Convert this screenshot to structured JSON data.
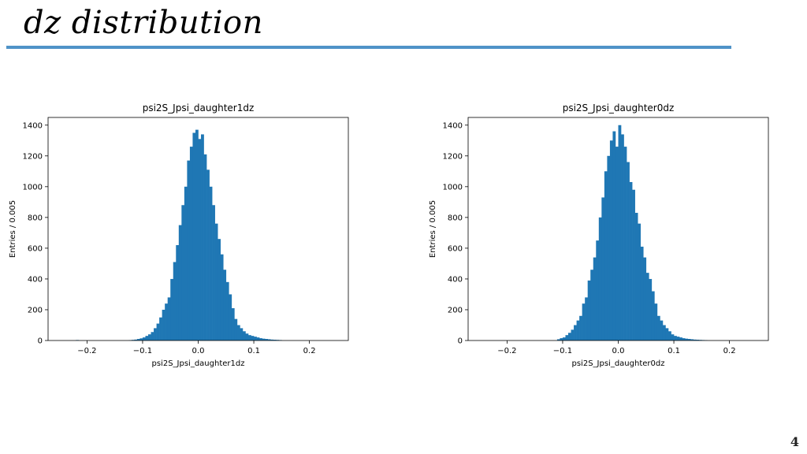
{
  "slide": {
    "title": "dz distribution",
    "page_number": "4"
  },
  "chart_data": [
    {
      "type": "bar",
      "title": "psi2S_Jpsi_daughter1dz",
      "xlabel": "psi2S_Jpsi_daughter1dz",
      "ylabel": "Entries / 0.005",
      "xlim": [
        -0.27,
        0.27
      ],
      "ylim": [
        0,
        1450
      ],
      "xticks": [
        "−0.2",
        "−0.1",
        "0.0",
        "0.1",
        "0.2"
      ],
      "xtick_values": [
        -0.2,
        -0.1,
        0.0,
        0.1,
        0.2
      ],
      "yticks": [
        "0",
        "200",
        "400",
        "600",
        "800",
        "1000",
        "1200",
        "1400"
      ],
      "ytick_values": [
        0,
        200,
        400,
        600,
        800,
        1000,
        1200,
        1400
      ],
      "bin_width": 0.005,
      "bin_centers": [
        -0.2175,
        -0.1225,
        -0.1175,
        -0.1125,
        -0.1075,
        -0.1025,
        -0.0975,
        -0.0925,
        -0.0875,
        -0.0825,
        -0.0775,
        -0.0725,
        -0.0675,
        -0.0625,
        -0.0575,
        -0.0525,
        -0.0475,
        -0.0425,
        -0.0375,
        -0.0325,
        -0.0275,
        -0.0225,
        -0.0175,
        -0.0125,
        -0.0075,
        -0.0025,
        0.0025,
        0.0075,
        0.0125,
        0.0175,
        0.0225,
        0.0275,
        0.0325,
        0.0375,
        0.0425,
        0.0475,
        0.0525,
        0.0575,
        0.0625,
        0.0675,
        0.0725,
        0.0775,
        0.0825,
        0.0875,
        0.0925,
        0.0975,
        0.1025,
        0.1075,
        0.1125,
        0.1175,
        0.1225,
        0.1275,
        0.1325,
        0.1375,
        0.1425,
        0.1475
      ],
      "values": [
        3,
        2,
        4,
        6,
        10,
        14,
        20,
        30,
        40,
        55,
        80,
        110,
        150,
        200,
        240,
        280,
        400,
        510,
        620,
        750,
        880,
        1000,
        1170,
        1260,
        1350,
        1370,
        1310,
        1340,
        1210,
        1110,
        1000,
        880,
        760,
        660,
        560,
        460,
        380,
        300,
        210,
        140,
        100,
        80,
        60,
        45,
        35,
        30,
        25,
        20,
        15,
        12,
        10,
        8,
        6,
        5,
        4,
        3
      ]
    },
    {
      "type": "bar",
      "title": "psi2S_Jpsi_daughter0dz",
      "xlabel": "psi2S_Jpsi_daughter0dz",
      "ylabel": "Entries / 0.005",
      "xlim": [
        -0.27,
        0.27
      ],
      "ylim": [
        0,
        1450
      ],
      "xticks": [
        "−0.2",
        "−0.1",
        "0.0",
        "0.1",
        "0.2"
      ],
      "xtick_values": [
        -0.2,
        -0.1,
        0.0,
        0.1,
        0.2
      ],
      "yticks": [
        "0",
        "200",
        "400",
        "600",
        "800",
        "1000",
        "1200",
        "1400"
      ],
      "ytick_values": [
        0,
        200,
        400,
        600,
        800,
        1000,
        1200,
        1400
      ],
      "bin_width": 0.005,
      "bin_centers": [
        -0.1075,
        -0.1025,
        -0.0975,
        -0.0925,
        -0.0875,
        -0.0825,
        -0.0775,
        -0.0725,
        -0.0675,
        -0.0625,
        -0.0575,
        -0.0525,
        -0.0475,
        -0.0425,
        -0.0375,
        -0.0325,
        -0.0275,
        -0.0225,
        -0.0175,
        -0.0125,
        -0.0075,
        -0.0025,
        0.0025,
        0.0075,
        0.0125,
        0.0175,
        0.0225,
        0.0275,
        0.0325,
        0.0375,
        0.0425,
        0.0475,
        0.0525,
        0.0575,
        0.0625,
        0.0675,
        0.0725,
        0.0775,
        0.0825,
        0.0875,
        0.0925,
        0.0975,
        0.1025,
        0.1075,
        0.1125,
        0.1175,
        0.1225,
        0.1275,
        0.1325,
        0.1375,
        0.1425,
        0.1475,
        0.1525,
        0.1575
      ],
      "values": [
        8,
        15,
        20,
        35,
        50,
        70,
        100,
        130,
        160,
        240,
        280,
        390,
        460,
        540,
        650,
        800,
        930,
        1100,
        1200,
        1300,
        1360,
        1260,
        1400,
        1340,
        1260,
        1160,
        1030,
        980,
        830,
        760,
        610,
        540,
        440,
        400,
        320,
        240,
        160,
        130,
        100,
        80,
        60,
        40,
        30,
        25,
        20,
        15,
        12,
        10,
        8,
        6,
        5,
        4,
        3,
        2
      ]
    }
  ]
}
